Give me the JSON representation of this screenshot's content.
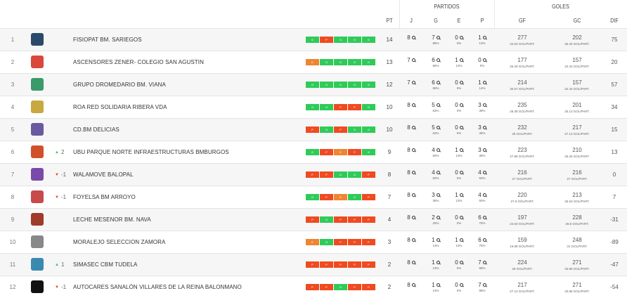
{
  "header": {
    "group_partidos": "PARTIDOS",
    "group_goles": "GOLES",
    "cols": {
      "pt": "PT",
      "j": "J",
      "g": "G",
      "e": "E",
      "p": "P",
      "gf": "GF",
      "gc": "GC",
      "dif": "DIF"
    }
  },
  "colors": {
    "win": "#2fcb58",
    "loss": "#f04a20",
    "draw": "#ee8530",
    "trend_up": "#41c35a",
    "trend_down": "#e8412a"
  },
  "rows": [
    {
      "pos": "1",
      "name": "FISIOPAT BM. SARIEGOS",
      "trend": "",
      "trend_dir": "",
      "form": [
        "G",
        "P",
        "G",
        "G",
        "G"
      ],
      "pt": "14",
      "j": "8",
      "g": "7",
      "g_pct": "88%",
      "e": "0",
      "e_pct": "0%",
      "p": "1",
      "p_pct": "13%",
      "gf": "277",
      "gf_avg": "34.63 GOL/PART.",
      "gc": "202",
      "gc_avg": "25.25 GOL/PART.",
      "dif": "75",
      "logo_color": "#2a4a6b"
    },
    {
      "pos": "2",
      "name": "ASCENSORES ZENER- COLEGIO SAN AGUSTIN",
      "trend": "",
      "trend_dir": "",
      "form": [
        "E",
        "G",
        "G",
        "G",
        "G"
      ],
      "pt": "13",
      "j": "7",
      "g": "6",
      "g_pct": "86%",
      "e": "1",
      "e_pct": "14%",
      "p": "0",
      "p_pct": "0%",
      "gf": "177",
      "gf_avg": "25.29 GOL/PART.",
      "gc": "157",
      "gc_avg": "22.43 GOL/PART.",
      "dif": "20",
      "logo_color": "#d9483a"
    },
    {
      "pos": "3",
      "name": "GRUPO DROMEDARIO BM. VIANA",
      "trend": "",
      "trend_dir": "",
      "form": [
        "G",
        "G",
        "G",
        "G",
        "G"
      ],
      "pt": "12",
      "j": "7",
      "g": "6",
      "g_pct": "86%",
      "e": "0",
      "e_pct": "0%",
      "p": "1",
      "p_pct": "14%",
      "gf": "214",
      "gf_avg": "30.57 GOL/PART.",
      "gc": "157",
      "gc_avg": "22.43 GOL/PART.",
      "dif": "57",
      "logo_color": "#3a9a6a"
    },
    {
      "pos": "4",
      "name": "ROA RED SOLIDARIA RIBERA VDA",
      "trend": "",
      "trend_dir": "",
      "form": [
        "G",
        "G",
        "P",
        "P",
        "G"
      ],
      "pt": "10",
      "j": "8",
      "g": "5",
      "g_pct": "63%",
      "e": "0",
      "e_pct": "0%",
      "p": "3",
      "p_pct": "38%",
      "gf": "235",
      "gf_avg": "29.38 GOL/PART.",
      "gc": "201",
      "gc_avg": "25.13 GOL/PART.",
      "dif": "34",
      "logo_color": "#c8a840"
    },
    {
      "pos": "5",
      "name": "CD.BM DELICIAS",
      "trend": "",
      "trend_dir": "",
      "form": [
        "P",
        "G",
        "P",
        "G",
        "G"
      ],
      "pt": "10",
      "j": "8",
      "g": "5",
      "g_pct": "63%",
      "e": "0",
      "e_pct": "0%",
      "p": "3",
      "p_pct": "38%",
      "gf": "232",
      "gf_avg": "29 GOL/PART.",
      "gc": "217",
      "gc_avg": "27.13 GOL/PART.",
      "dif": "15",
      "logo_color": "#6a5aa0"
    },
    {
      "pos": "6",
      "name": "UBU PARQUE NORTE INFRAESTRUCTURAS BMBURGOS",
      "trend": "2",
      "trend_dir": "up",
      "form": [
        "G",
        "P",
        "E",
        "P",
        "G"
      ],
      "pt": "9",
      "j": "8",
      "g": "4",
      "g_pct": "50%",
      "e": "1",
      "e_pct": "13%",
      "p": "3",
      "p_pct": "38%",
      "gf": "223",
      "gf_avg": "27.88 GOL/PART.",
      "gc": "210",
      "gc_avg": "26.25 GOL/PART.",
      "dif": "13",
      "logo_color": "#d0502a"
    },
    {
      "pos": "7",
      "name": "WALAMOVE BALOPAL",
      "trend": "-1",
      "trend_dir": "down",
      "form": [
        "P",
        "P",
        "G",
        "G",
        "P"
      ],
      "pt": "8",
      "j": "8",
      "g": "4",
      "g_pct": "50%",
      "e": "0",
      "e_pct": "0%",
      "p": "4",
      "p_pct": "50%",
      "gf": "216",
      "gf_avg": "27 GOL/PART.",
      "gc": "216",
      "gc_avg": "27 GOL/PART.",
      "dif": "0",
      "logo_color": "#7a4aa8"
    },
    {
      "pos": "8",
      "name": "FOYELSA BM ARROYO",
      "trend": "-1",
      "trend_dir": "down",
      "form": [
        "G",
        "P",
        "E",
        "G",
        "P"
      ],
      "pt": "7",
      "j": "8",
      "g": "3",
      "g_pct": "38%",
      "e": "1",
      "e_pct": "13%",
      "p": "4",
      "p_pct": "50%",
      "gf": "220",
      "gf_avg": "27.5 GOL/PART.",
      "gc": "213",
      "gc_avg": "26.63 GOL/PART.",
      "dif": "7",
      "logo_color": "#c84a4a"
    },
    {
      "pos": "9",
      "name": "LECHE MESENOR BM. NAVA",
      "trend": "",
      "trend_dir": "",
      "form": [
        "P",
        "G",
        "P",
        "P",
        "P"
      ],
      "pt": "4",
      "j": "8",
      "g": "2",
      "g_pct": "25%",
      "e": "0",
      "e_pct": "0%",
      "p": "6",
      "p_pct": "75%",
      "gf": "197",
      "gf_avg": "24.63 GOL/PART.",
      "gc": "228",
      "gc_avg": "28.5 GOL/PART.",
      "dif": "-31",
      "logo_color": "#a03a2a"
    },
    {
      "pos": "10",
      "name": "MORALEJO SELECCION ZAMORA",
      "trend": "",
      "trend_dir": "",
      "form": [
        "E",
        "G",
        "P",
        "P",
        "P"
      ],
      "pt": "3",
      "j": "8",
      "g": "1",
      "g_pct": "13%",
      "e": "1",
      "e_pct": "13%",
      "p": "6",
      "p_pct": "75%",
      "gf": "159",
      "gf_avg": "19.88 GOL/PART.",
      "gc": "248",
      "gc_avg": "31 GOL/PART.",
      "dif": "-89",
      "logo_color": "#888888"
    },
    {
      "pos": "11",
      "name": "SIMASEC CBM TUDELA",
      "trend": "1",
      "trend_dir": "up",
      "form": [
        "P",
        "P",
        "P",
        "P",
        "P"
      ],
      "pt": "2",
      "j": "8",
      "g": "1",
      "g_pct": "13%",
      "e": "0",
      "e_pct": "0%",
      "p": "7",
      "p_pct": "88%",
      "gf": "224",
      "gf_avg": "28 GOL/PART.",
      "gc": "271",
      "gc_avg": "33.88 GOL/PART.",
      "dif": "-47",
      "logo_color": "#3a8ab0"
    },
    {
      "pos": "12",
      "name": "AUTOCARES SANALÓN VILLARES DE LA REINA BALONMANO",
      "trend": "-1",
      "trend_dir": "down",
      "form": [
        "P",
        "P",
        "G",
        "P",
        "P"
      ],
      "pt": "2",
      "j": "8",
      "g": "1",
      "g_pct": "13%",
      "e": "0",
      "e_pct": "0%",
      "p": "7",
      "p_pct": "88%",
      "gf": "217",
      "gf_avg": "27.13 GOL/PART.",
      "gc": "271",
      "gc_avg": "33.88 GOL/PART.",
      "dif": "-54",
      "logo_color": "#111111"
    }
  ]
}
